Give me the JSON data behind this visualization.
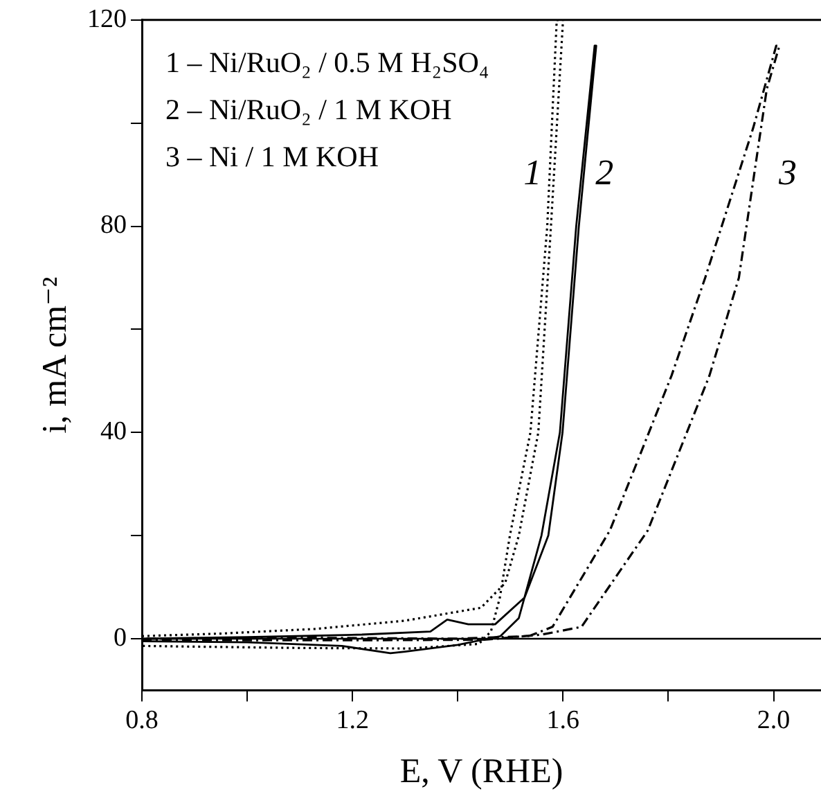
{
  "chart_data": {
    "type": "line",
    "xlabel": "E, V (RHE)",
    "ylabel": "i, mA cm⁻²",
    "xlim": [
      0.8,
      2.09
    ],
    "xticks": [
      0.8,
      {
        "value": 1.0,
        "label": null
      },
      1.2,
      {
        "value": 1.4,
        "label": null
      },
      1.6,
      {
        "value": 1.8,
        "label": null
      },
      {
        "value": 2.0,
        "label": "2.0"
      }
    ],
    "ylim": [
      -10,
      120
    ],
    "yticks": [
      0,
      {
        "value": 20,
        "label": null
      },
      40,
      {
        "value": 60,
        "label": null
      },
      80,
      {
        "value": 100,
        "label": null
      },
      120
    ],
    "grid": false,
    "legend": false,
    "marker": "none",
    "ref_lines": [
      {
        "axis": "y",
        "value": 0,
        "color": "#000000"
      }
    ],
    "annotations": [
      "1 – Ni/RuO₂ / 0.5 M H₂SO₄",
      "2 – Ni/RuO₂ / 1 M KOH",
      "3 – Ni / 1 M KOH"
    ],
    "series": [
      {
        "name": "1",
        "color": "#000000",
        "line_style": "dotted",
        "x": [
          0.8,
          0.95,
          1.13,
          1.3,
          1.444,
          1.49,
          1.516,
          1.553,
          1.577,
          1.6,
          1.588,
          1.57,
          1.538,
          1.499,
          1.48,
          1.463,
          1.44,
          1.31,
          1.1,
          0.8
        ],
        "values": [
          0.5,
          1,
          1.9,
          3.5,
          6,
          10.8,
          20,
          40,
          80,
          120,
          120,
          80,
          40,
          20,
          8,
          1.4,
          -1,
          -1.9,
          -1.8,
          -1.4
        ]
      },
      {
        "name": "2",
        "color": "#000000",
        "line_style": "solid",
        "x": [
          0.8,
          1.0,
          1.218,
          1.348,
          1.38,
          1.42,
          1.471,
          1.527,
          1.572,
          1.599,
          1.63,
          1.663,
          1.66,
          1.625,
          1.594,
          1.559,
          1.516,
          1.481,
          1.4,
          1.3,
          1.272,
          1.18,
          1.0,
          0.8
        ],
        "values": [
          0,
          0.3,
          0.8,
          1.4,
          3.7,
          2.8,
          2.8,
          8,
          20,
          40,
          80,
          115,
          115,
          80,
          40,
          20,
          4,
          0.5,
          -1.2,
          -2.5,
          -2.8,
          -1.4,
          -0.7,
          -0.5
        ]
      },
      {
        "name": "3",
        "color": "#000000",
        "line_style": "dashed",
        "x": [
          0.8,
          1.2,
          1.45,
          1.56,
          1.635,
          1.761,
          1.878,
          1.934,
          1.987,
          2.011,
          2.005,
          1.961,
          1.87,
          1.806,
          1.689,
          1.58,
          1.535,
          1.4,
          1.1,
          0.8
        ],
        "values": [
          -0.3,
          -0.3,
          -0.2,
          0.8,
          2.3,
          21,
          51,
          70,
          106.6,
          115,
          115,
          99,
          70,
          51,
          21,
          2.3,
          0.5,
          0,
          0.2,
          0
        ]
      }
    ]
  }
}
